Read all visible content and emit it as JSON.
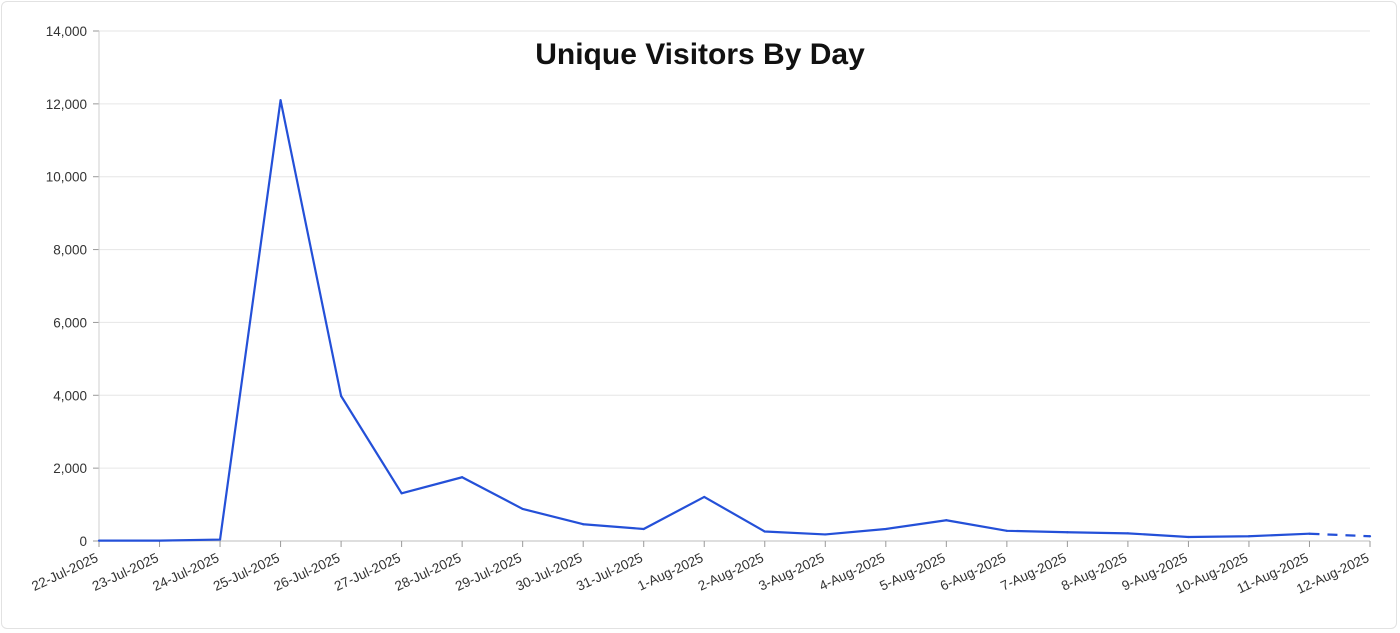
{
  "chart_data": {
    "type": "line",
    "title": "Unique Visitors By Day",
    "xlabel": "",
    "ylabel": "",
    "x": [
      "22-Jul-2025",
      "23-Jul-2025",
      "24-Jul-2025",
      "25-Jul-2025",
      "26-Jul-2025",
      "27-Jul-2025",
      "28-Jul-2025",
      "29-Jul-2025",
      "30-Jul-2025",
      "31-Jul-2025",
      "1-Aug-2025",
      "2-Aug-2025",
      "3-Aug-2025",
      "4-Aug-2025",
      "5-Aug-2025",
      "6-Aug-2025",
      "7-Aug-2025",
      "8-Aug-2025",
      "9-Aug-2025",
      "10-Aug-2025",
      "11-Aug-2025",
      "12-Aug-2025"
    ],
    "series": [
      {
        "values": [
          10,
          10,
          40,
          12100,
          3980,
          1310,
          1750,
          880,
          460,
          330,
          1210,
          260,
          180,
          330,
          570,
          280,
          240,
          210,
          110,
          130,
          200,
          130
        ]
      }
    ],
    "yticks": [
      "0",
      "2,000",
      "4,000",
      "6,000",
      "8,000",
      "10,000",
      "12,000",
      "14,000"
    ],
    "ylim": [
      0,
      14000
    ],
    "grid": true,
    "line_color": "#2450d8",
    "last_segment_style": "dashed"
  }
}
